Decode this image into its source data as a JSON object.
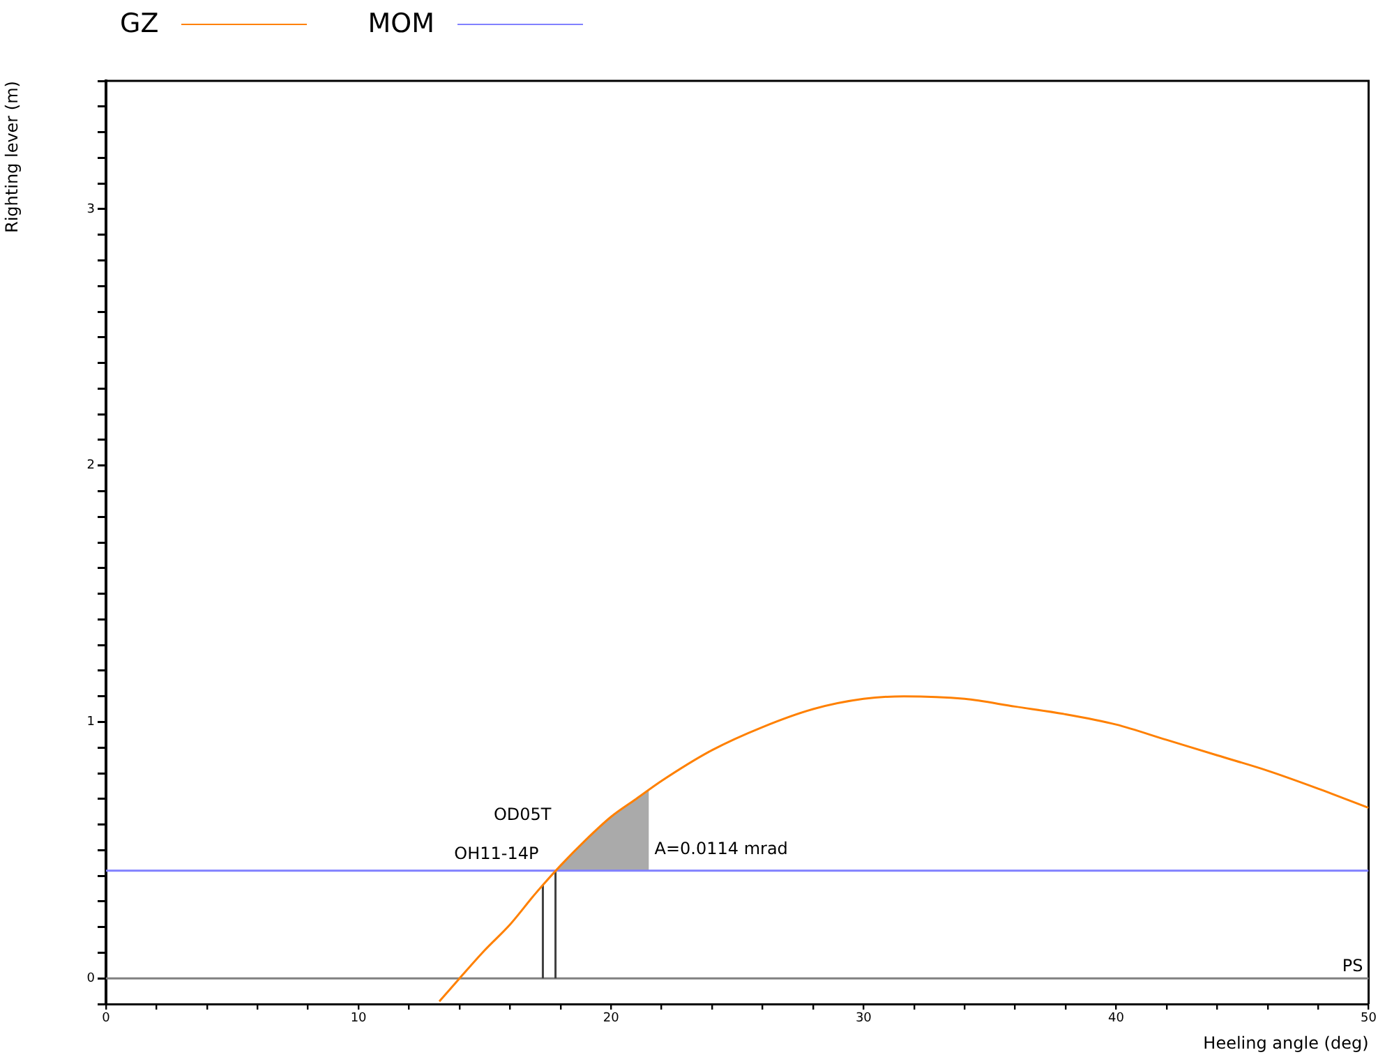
{
  "chart_data": {
    "type": "line",
    "xlabel": "Heeling angle (deg)",
    "ylabel": "Righting lever (m)",
    "xlim": [
      0,
      50
    ],
    "ylim": [
      -0.1,
      3.5
    ],
    "xticks": [
      0,
      {
        "value": 2,
        "label": null
      },
      {
        "value": 4,
        "label": null
      },
      {
        "value": 6,
        "label": null
      },
      {
        "value": 8,
        "label": null
      },
      10,
      {
        "value": 12,
        "label": null
      },
      {
        "value": 14,
        "label": null
      },
      {
        "value": 16,
        "label": null
      },
      {
        "value": 18,
        "label": null
      },
      20,
      {
        "value": 22,
        "label": null
      },
      {
        "value": 24,
        "label": null
      },
      {
        "value": 26,
        "label": null
      },
      {
        "value": 28,
        "label": null
      },
      30,
      {
        "value": 32,
        "label": null
      },
      {
        "value": 34,
        "label": null
      },
      {
        "value": 36,
        "label": null
      },
      {
        "value": 38,
        "label": null
      },
      40,
      {
        "value": 42,
        "label": null
      },
      {
        "value": 44,
        "label": null
      },
      {
        "value": 46,
        "label": null
      },
      {
        "value": 48,
        "label": null
      },
      50
    ],
    "yticks": [
      {
        "value": -0.1,
        "label": null
      },
      0,
      {
        "value": 0.1,
        "label": null
      },
      {
        "value": 0.2,
        "label": null
      },
      {
        "value": 0.3,
        "label": null
      },
      {
        "value": 0.4,
        "label": null
      },
      {
        "value": 0.5,
        "label": null
      },
      {
        "value": 0.6,
        "label": null
      },
      {
        "value": 0.7,
        "label": null
      },
      {
        "value": 0.8,
        "label": null
      },
      {
        "value": 0.9,
        "label": null
      },
      1,
      {
        "value": 1.1,
        "label": null
      },
      {
        "value": 1.2,
        "label": null
      },
      {
        "value": 1.3,
        "label": null
      },
      {
        "value": 1.4,
        "label": null
      },
      {
        "value": 1.5,
        "label": null
      },
      {
        "value": 1.6,
        "label": null
      },
      {
        "value": 1.7,
        "label": null
      },
      {
        "value": 1.8,
        "label": null
      },
      {
        "value": 1.9,
        "label": null
      },
      2,
      {
        "value": 2.1,
        "label": null
      },
      {
        "value": 2.2,
        "label": null
      },
      {
        "value": 2.3,
        "label": null
      },
      {
        "value": 2.4,
        "label": null
      },
      {
        "value": 2.5,
        "label": null
      },
      {
        "value": 2.6,
        "label": null
      },
      {
        "value": 2.7,
        "label": null
      },
      {
        "value": 2.8,
        "label": null
      },
      {
        "value": 2.9,
        "label": null
      },
      3,
      {
        "value": 3.1,
        "label": null
      },
      {
        "value": 3.2,
        "label": null
      },
      {
        "value": 3.3,
        "label": null
      },
      {
        "value": 3.4,
        "label": null
      },
      {
        "value": 3.5,
        "label": null
      }
    ],
    "legend": "top left",
    "marker": "none",
    "series": [
      {
        "name": "GZ",
        "color": "#ff8000",
        "x": [
          13.2,
          14,
          15,
          16,
          17,
          18,
          19,
          20,
          21,
          22,
          24,
          26,
          28,
          30,
          31.6,
          34,
          36,
          38,
          40,
          42,
          44,
          46,
          48,
          50
        ],
        "values": [
          -0.09,
          0,
          0.11,
          0.21,
          0.33,
          0.44,
          0.54,
          0.63,
          0.7,
          0.77,
          0.89,
          0.98,
          1.05,
          1.09,
          1.1,
          1.09,
          1.06,
          1.03,
          0.99,
          0.93,
          0.87,
          0.81,
          0.74,
          0.665
        ]
      },
      {
        "name": "MOM",
        "color": "#8080ff",
        "x": [
          0,
          50
        ],
        "values": [
          0.42,
          0.42
        ]
      },
      {
        "type": "area",
        "name": "A=0.0114 mrad",
        "color": "#000000",
        "x": [
          17.8,
          18,
          19,
          20,
          21,
          21.5
        ],
        "values": [
          0.42,
          0.44,
          0.54,
          0.63,
          0.7,
          0.735
        ]
      }
    ],
    "ref_lines": [
      {
        "axis": "y",
        "value": 0,
        "color": "#808080"
      },
      {
        "axis": "x",
        "value": 17.3,
        "label": "OH11-14P",
        "color": "#404040"
      },
      {
        "axis": "x",
        "value": 17.8,
        "label": "OD05T",
        "color": "#404040"
      }
    ],
    "annotations": [
      "PS"
    ]
  }
}
